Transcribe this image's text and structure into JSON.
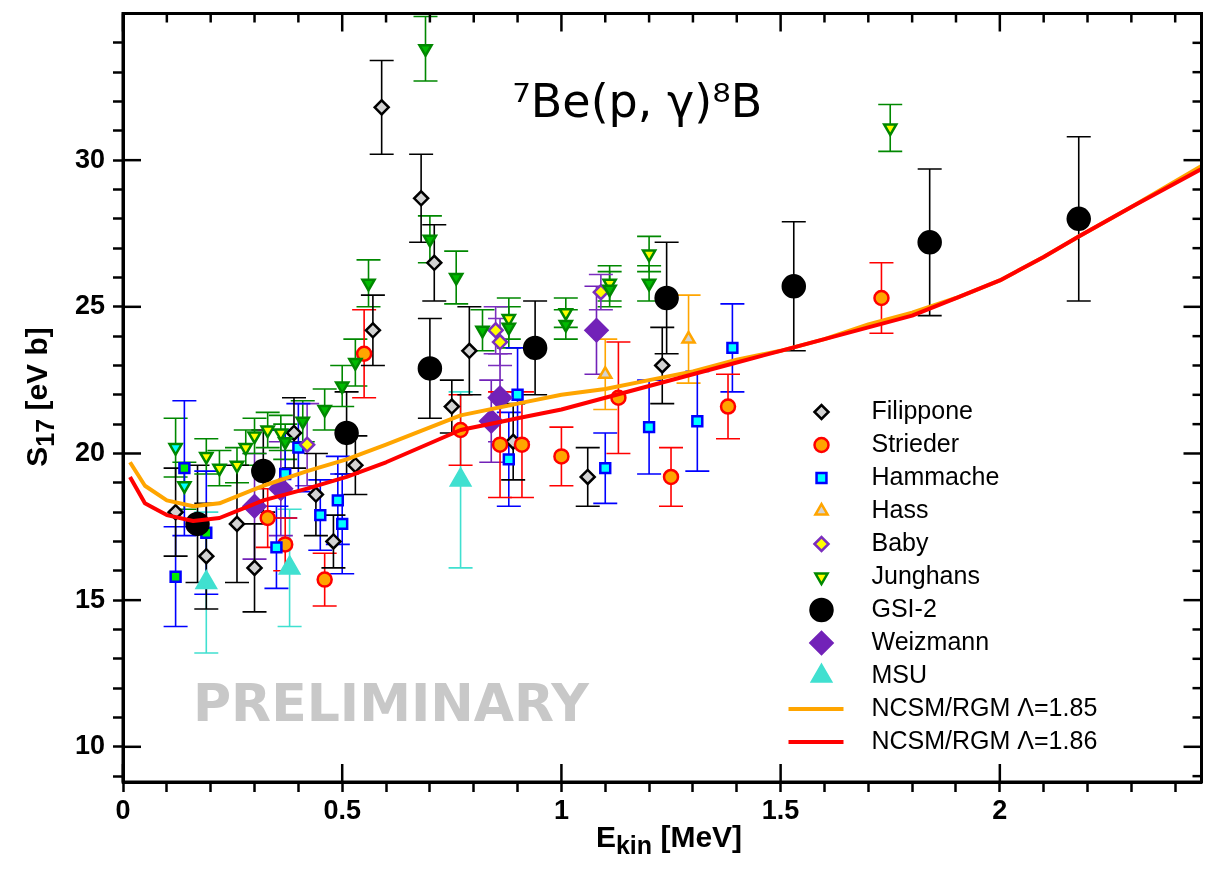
{
  "chart_data": {
    "type": "scatter",
    "title": "⁷Be(p, γ)⁸B",
    "xlabel": "E$_{kin}$ [MeV]",
    "ylabel": "S$_{17}$ [eV b]",
    "annotations": [
      "PRELIMINARY"
    ],
    "xlim": [
      0,
      2.46
    ],
    "ylim": [
      8.8,
      35
    ],
    "xticks": [
      0,
      {
        "value": 0.1,
        "label": null
      },
      {
        "value": 0.2,
        "label": null
      },
      {
        "value": 0.3,
        "label": null
      },
      {
        "value": 0.4,
        "label": null
      },
      0.5,
      {
        "value": 0.6,
        "label": null
      },
      {
        "value": 0.7,
        "label": null
      },
      {
        "value": 0.8,
        "label": null
      },
      {
        "value": 0.9,
        "label": null
      },
      1,
      {
        "value": 1.1,
        "label": null
      },
      {
        "value": 1.2,
        "label": null
      },
      {
        "value": 1.3,
        "label": null
      },
      {
        "value": 1.4,
        "label": null
      },
      1.5,
      {
        "value": 1.6,
        "label": null
      },
      {
        "value": 1.7,
        "label": null
      },
      {
        "value": 1.8,
        "label": null
      },
      {
        "value": 1.9,
        "label": null
      },
      2,
      {
        "value": 2.1,
        "label": null
      },
      {
        "value": 2.2,
        "label": null
      },
      {
        "value": 2.3,
        "label": null
      },
      {
        "value": 2.4,
        "label": null
      }
    ],
    "yticks": [
      {
        "value": 9,
        "label": null
      },
      10,
      {
        "value": 11,
        "label": null
      },
      {
        "value": 12,
        "label": null
      },
      {
        "value": 13,
        "label": null
      },
      {
        "value": 14,
        "label": null
      },
      15,
      {
        "value": 16,
        "label": null
      },
      {
        "value": 17,
        "label": null
      },
      {
        "value": 18,
        "label": null
      },
      {
        "value": 19,
        "label": null
      },
      20,
      {
        "value": 21,
        "label": null
      },
      {
        "value": 22,
        "label": null
      },
      {
        "value": 23,
        "label": null
      },
      {
        "value": 24,
        "label": null
      },
      25,
      {
        "value": 26,
        "label": null
      },
      {
        "value": 27,
        "label": null
      },
      {
        "value": 28,
        "label": null
      },
      {
        "value": 29,
        "label": null
      },
      30,
      {
        "value": 31,
        "label": null
      },
      {
        "value": 32,
        "label": null
      },
      {
        "value": 33,
        "label": null
      },
      {
        "value": 34,
        "label": null
      }
    ],
    "legend": "bottom right",
    "series": [
      {
        "name": "Filippone",
        "marker": "diamond",
        "color": "#000000",
        "colors": [
          "#d3d3d3",
          "#d3d3d3",
          "#d3d3d3",
          "#d3d3d3",
          "#d3d3d3",
          "#d3d3d3",
          "#d3d3d3",
          "#d3d3d3",
          "#d3d3d3",
          "#d3d3d3",
          "#d3d3d3",
          "#d3d3d3",
          "#d3d3d3",
          "#d3d3d3",
          "#d3d3d3",
          "#d3d3d3",
          "#d3d3d3"
        ],
        "x": [
          0.12,
          0.19,
          0.26,
          0.3,
          0.39,
          0.44,
          0.48,
          0.53,
          0.57,
          0.59,
          0.68,
          0.71,
          0.75,
          0.79,
          0.89,
          1.06,
          1.23
        ],
        "values": [
          18.0,
          16.5,
          17.6,
          16.1,
          20.7,
          18.6,
          17.0,
          19.6,
          24.2,
          31.8,
          28.7,
          26.5,
          21.6,
          23.5,
          20.4,
          19.2,
          23.0
        ],
        "errors": [
          1.5,
          1.8,
          2.0,
          1.5,
          1.2,
          1.4,
          0.9,
          1.0,
          1.2,
          1.6,
          1.5,
          1.3,
          0.9,
          1.5,
          1.3,
          1.0,
          1.3
        ]
      },
      {
        "name": "Strieder",
        "marker": "circle",
        "color": "#ff0000",
        "colors": [
          "#ffa500",
          "#ffa500",
          "#ffa500",
          "#ffa500",
          "#ffa500",
          "#ffa500",
          "#ffa500",
          "#ffa500",
          "#ffa500",
          "#ffa500",
          "#ffa500",
          "#ffa500"
        ],
        "x": [
          0.33,
          0.37,
          0.46,
          0.55,
          0.77,
          0.86,
          0.91,
          1.0,
          1.13,
          1.25,
          1.38,
          1.73
        ],
        "values": [
          17.8,
          16.9,
          15.7,
          23.4,
          20.8,
          20.3,
          20.3,
          19.9,
          21.9,
          19.2,
          21.6,
          25.3
        ],
        "errors": [
          1.0,
          0.9,
          0.9,
          1.5,
          1.2,
          1.8,
          1.8,
          1.0,
          1.9,
          1.0,
          1.1,
          1.2
        ]
      },
      {
        "name": "Hammache",
        "marker": "square",
        "color": "#0000ff",
        "colors": [
          "#00ee00",
          "#00ee00",
          "#00ee00",
          "#00ffff",
          "#00ffff",
          "#00ffff",
          "#00ffff",
          "#00ffff",
          "#00ffff",
          "#00ffff",
          "#00ffff",
          "#00ffff",
          "#00ffff",
          "#00ffff",
          "#00ffff"
        ],
        "x": [
          0.12,
          0.14,
          0.19,
          0.35,
          0.37,
          0.4,
          0.45,
          0.49,
          0.5,
          0.88,
          0.9,
          1.1,
          1.2,
          1.31,
          1.39
        ],
        "values": [
          15.8,
          19.5,
          17.3,
          16.8,
          19.3,
          20.2,
          17.9,
          18.4,
          17.6,
          19.8,
          22.0,
          19.5,
          20.9,
          21.1,
          23.6
        ],
        "errors": [
          1.7,
          2.3,
          2.1,
          1.4,
          1.5,
          1.5,
          1.2,
          1.5,
          1.7,
          1.6,
          1.6,
          1.2,
          1.6,
          1.7,
          1.5
        ]
      },
      {
        "name": "Hass",
        "marker": "triangle",
        "color": "#ffa500",
        "colors": [
          "#d3d3d3",
          "#d3d3d3"
        ],
        "x": [
          1.1,
          1.29
        ],
        "values": [
          22.7,
          23.9
        ],
        "errors": [
          1.2,
          1.5
        ]
      },
      {
        "name": "Baby",
        "marker": "diamond",
        "color": "#7b2fbe",
        "colors": [
          "#ffff00",
          "#ffff00",
          "#ffff00",
          "#ffff00"
        ],
        "x": [
          0.42,
          0.85,
          0.86,
          1.09
        ],
        "values": [
          20.3,
          24.2,
          23.8,
          25.5
        ],
        "errors": [
          1.4,
          0.8,
          0.8,
          0.6
        ]
      },
      {
        "name": "Junghans",
        "marker": "triangle-down",
        "color": "#008800",
        "colors": [
          "#00ffff",
          "#00ffff",
          "#ffff00",
          "#ffff00",
          "#ffff00",
          "#ffff00",
          "#ffff00",
          "#ffff00",
          "#ffff00",
          "#00bb00",
          "#00bb00",
          "#00bb00",
          "#00bb00",
          "#00bb00",
          "#00bb00",
          "#00bb00",
          "#00bb00",
          "#00bb00",
          "#00bb00",
          "#ffff00",
          "#00bb00",
          "#ffff00",
          "#00bb00",
          "#ffff00",
          "#00bb00",
          "#ffff00",
          "#00bb00",
          "#ffff00"
        ],
        "x": [
          0.12,
          0.14,
          0.19,
          0.22,
          0.26,
          0.28,
          0.3,
          0.33,
          0.36,
          0.37,
          0.41,
          0.46,
          0.5,
          0.53,
          0.56,
          0.69,
          0.7,
          0.76,
          0.82,
          0.88,
          0.88,
          1.01,
          1.01,
          1.11,
          1.11,
          1.2,
          1.2,
          1.75
        ],
        "values": [
          20.2,
          18.9,
          19.9,
          19.5,
          19.6,
          20.2,
          20.6,
          20.8,
          20.7,
          20.4,
          21.1,
          21.5,
          22.3,
          23.1,
          25.8,
          33.8,
          27.3,
          26.0,
          24.2,
          24.6,
          24.3,
          24.8,
          24.4,
          25.8,
          25.6,
          26.8,
          25.8,
          31.1
        ],
        "errors": [
          1.0,
          0.8,
          0.6,
          0.6,
          0.6,
          0.6,
          0.6,
          0.6,
          0.6,
          0.6,
          0.7,
          0.7,
          0.7,
          0.8,
          0.8,
          1.1,
          0.8,
          0.9,
          0.7,
          0.7,
          0.7,
          0.5,
          0.5,
          0.6,
          0.6,
          0.6,
          0.6,
          0.8
        ]
      },
      {
        "name": "GSI-2",
        "marker": "circle",
        "color": "#000000",
        "colors": [
          "#000000",
          "#000000",
          "#000000",
          "#000000",
          "#000000",
          "#000000",
          "#000000",
          "#000000",
          "#000000"
        ],
        "x": [
          0.17,
          0.32,
          0.51,
          0.7,
          0.94,
          1.24,
          1.53,
          1.84,
          2.18
        ],
        "values": [
          17.6,
          19.4,
          20.7,
          22.9,
          23.6,
          25.3,
          25.7,
          27.2,
          28.0
        ],
        "errors": [
          2.0,
          1.4,
          1.4,
          1.7,
          1.6,
          1.9,
          2.2,
          2.5,
          2.8
        ]
      },
      {
        "name": "Weizmann",
        "marker": "diamond",
        "color": "#7222b8",
        "colors": [
          "#7222b8",
          "#7222b8",
          "#7222b8",
          "#7222b8",
          "#7222b8"
        ],
        "x": [
          0.3,
          0.36,
          0.84,
          0.86,
          1.08
        ],
        "values": [
          18.2,
          18.8,
          21.1,
          21.9,
          24.2
        ],
        "errors": [
          1.8,
          1.6,
          1.4,
          1.5,
          1.5
        ]
      },
      {
        "name": "MSU",
        "marker": "triangle",
        "color": "#40e0d0",
        "colors": [
          "#40e0d0",
          "#40e0d0",
          "#40e0d0"
        ],
        "x": [
          0.19,
          0.38,
          0.77
        ],
        "values": [
          15.6,
          16.1,
          19.1
        ],
        "errors": [
          2.4,
          2.0,
          3.0
        ]
      },
      {
        "type": "line",
        "name": "NCSM/RGM Λ=1.85",
        "color": "#ffa500",
        "line_style": "solid",
        "x": [
          0.016,
          0.05,
          0.1,
          0.16,
          0.22,
          0.32,
          0.42,
          0.51,
          0.6,
          0.77,
          0.9,
          1.0,
          1.1,
          1.2,
          1.3,
          1.4,
          1.5,
          1.6,
          1.7,
          1.8,
          1.9,
          2.0,
          2.1,
          2.18,
          2.3,
          2.46
        ],
        "values": [
          19.7,
          18.9,
          18.4,
          18.2,
          18.3,
          18.9,
          19.4,
          19.8,
          20.3,
          21.3,
          21.7,
          22.0,
          22.2,
          22.5,
          22.8,
          23.2,
          23.5,
          23.9,
          24.4,
          24.8,
          25.3,
          25.9,
          26.7,
          27.4,
          28.4,
          29.8
        ]
      },
      {
        "type": "line",
        "name": "NCSM/RGM Λ=1.86",
        "color": "#ff0000",
        "line_style": "solid",
        "x": [
          0.016,
          0.05,
          0.1,
          0.16,
          0.22,
          0.32,
          0.42,
          0.51,
          0.6,
          0.77,
          0.9,
          1.0,
          1.1,
          1.2,
          1.3,
          1.4,
          1.5,
          1.6,
          1.7,
          1.8,
          1.9,
          2.0,
          2.1,
          2.18,
          2.3,
          2.46
        ],
        "values": [
          19.2,
          18.3,
          17.9,
          17.7,
          17.8,
          18.4,
          18.8,
          19.2,
          19.7,
          20.8,
          21.2,
          21.5,
          21.9,
          22.3,
          22.7,
          23.1,
          23.5,
          23.9,
          24.3,
          24.7,
          25.3,
          25.9,
          26.7,
          27.4,
          28.4,
          29.7
        ]
      }
    ]
  }
}
